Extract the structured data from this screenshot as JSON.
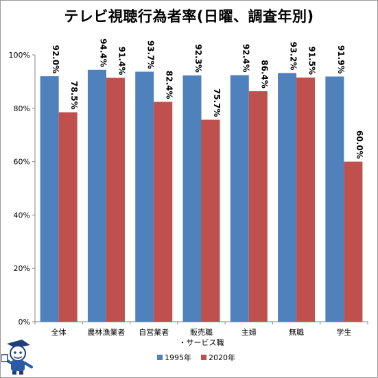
{
  "chart_data": {
    "type": "bar",
    "title": "テレビ視聴行為者率(日曜、調査年別)",
    "categories": [
      "全体",
      "農林漁業者",
      "自営業者",
      "販売職\n・サービス職",
      "主婦",
      "無職",
      "学生"
    ],
    "series": [
      {
        "name": "1995年",
        "color": "#4f81bd",
        "values": [
          92.0,
          94.4,
          93.7,
          92.3,
          92.4,
          93.2,
          91.9
        ]
      },
      {
        "name": "2020年",
        "color": "#c0504d",
        "values": [
          78.5,
          91.4,
          82.4,
          75.7,
          86.4,
          91.5,
          60.0
        ]
      }
    ],
    "ylim": [
      0,
      100
    ],
    "yticks": [
      0,
      20,
      40,
      60,
      80,
      100
    ],
    "ytick_suffix": "%",
    "data_label_decimals": 1,
    "grid": false,
    "legend": "bottom-center"
  }
}
